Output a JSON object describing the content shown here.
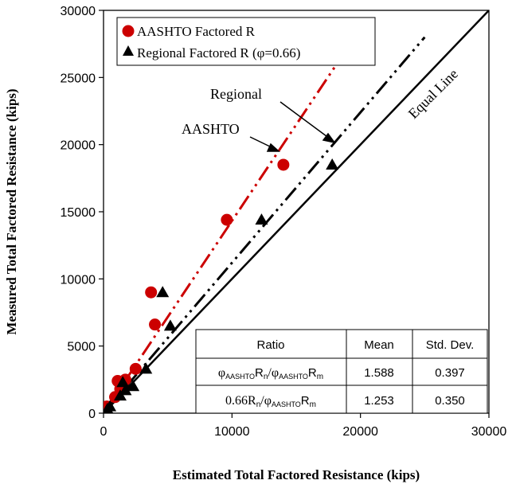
{
  "chart_data": {
    "type": "scatter",
    "xlabel": "Estimated Total Factored Resistance (kips)",
    "ylabel": "Measured Total Factored Resistance (kips)",
    "xlim": [
      0,
      30000
    ],
    "ylim": [
      0,
      30000
    ],
    "x_ticks": [
      "0",
      "10000",
      "20000",
      "30000"
    ],
    "y_ticks": [
      "0",
      "5000",
      "10000",
      "15000",
      "20000",
      "25000",
      "30000"
    ],
    "x_tick_values": [
      0,
      10000,
      20000,
      30000
    ],
    "y_tick_values": [
      0,
      5000,
      10000,
      15000,
      20000,
      25000,
      30000
    ],
    "grid": false,
    "legend_position": "top-left",
    "series": [
      {
        "name": "AASHTO Factored R",
        "marker": "circle",
        "color": "#cc0000",
        "x": [
          100,
          250,
          900,
          1100,
          1300,
          1700,
          2500,
          4000,
          3700,
          9600,
          14000
        ],
        "y": [
          300,
          500,
          1200,
          2400,
          1800,
          2500,
          3300,
          6600,
          9000,
          14400,
          18500
        ]
      },
      {
        "name": "Regional Factored R (φ=0.66)",
        "marker": "triangle",
        "color": "#000000",
        "x": [
          300,
          500,
          1300,
          1500,
          1700,
          2300,
          3300,
          5200,
          4600,
          12300,
          17800
        ],
        "y": [
          300,
          500,
          1300,
          2300,
          1700,
          2000,
          3300,
          6500,
          9000,
          14400,
          18500
        ]
      }
    ],
    "lines": [
      {
        "name": "Equal Line",
        "style": "solid",
        "color": "#000000",
        "x": [
          0,
          30000
        ],
        "y": [
          0,
          30000
        ]
      },
      {
        "name": "AASHTO",
        "style": "dash-dot-dot",
        "color": "#cc0000",
        "x": [
          0,
          18500
        ],
        "y": [
          0,
          26500
        ]
      },
      {
        "name": "Regional",
        "style": "dash-dot-dot",
        "color": "#000000",
        "x": [
          0,
          25000
        ],
        "y": [
          0,
          28000
        ]
      }
    ],
    "annotations": [
      {
        "text": "Equal Line"
      },
      {
        "text": "Regional"
      },
      {
        "text": "AASHTO"
      }
    ],
    "table": {
      "headers": [
        "Ratio",
        "Mean",
        "Std. Dev."
      ],
      "rows": [
        {
          "ratio_main": "φ",
          "ratio_sub1": "AASHTO",
          "ratio_mid": "R",
          "ratio_sub2": "n",
          "ratio_mid2": "/φ",
          "ratio_sub3": "AASHTO",
          "ratio_end": "R",
          "ratio_sub4": "m",
          "mean": "1.588",
          "std": "0.397"
        },
        {
          "ratio_main": "0.66R",
          "ratio_sub1": "",
          "ratio_mid": "",
          "ratio_sub2": "n",
          "ratio_mid2": "/φ",
          "ratio_sub3": "AASHTO",
          "ratio_end": "R",
          "ratio_sub4": "m",
          "mean": "1.253",
          "std": "0.350"
        }
      ]
    }
  }
}
